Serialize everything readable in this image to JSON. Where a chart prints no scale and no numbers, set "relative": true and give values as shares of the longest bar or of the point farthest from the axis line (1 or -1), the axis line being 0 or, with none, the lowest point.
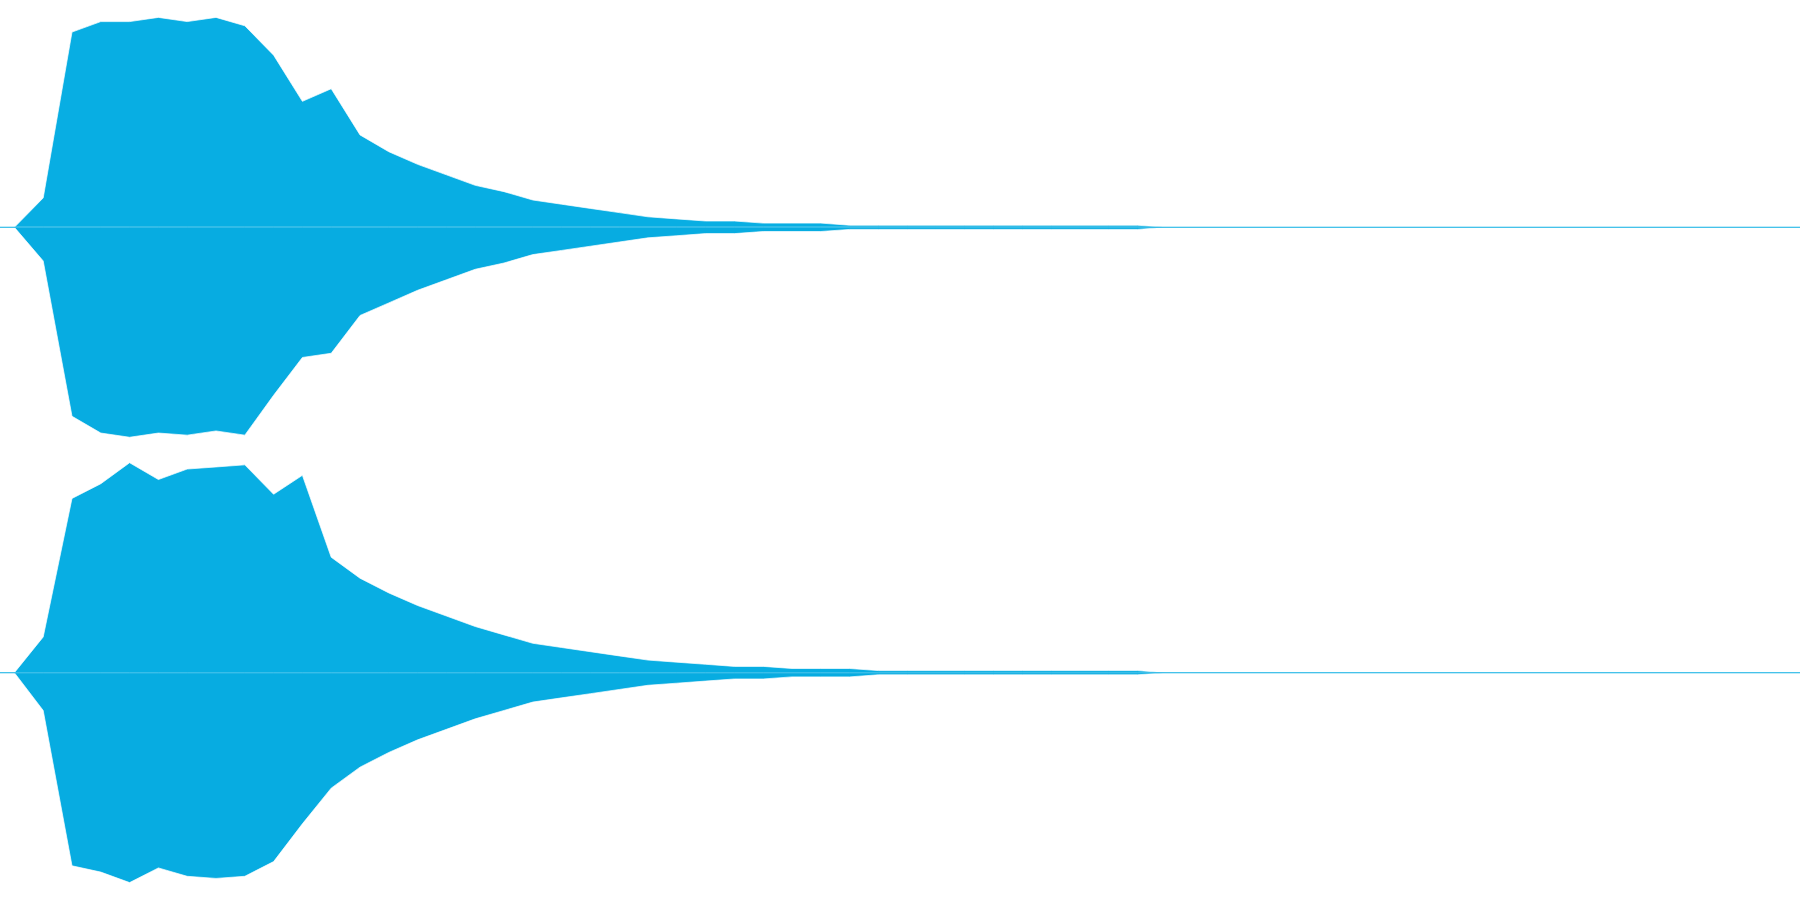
{
  "chart_data": [
    {
      "type": "area",
      "relative": true,
      "categories": [
        null,
        null,
        null,
        null,
        null,
        null,
        null,
        null,
        null,
        null,
        null,
        null,
        null,
        null,
        null,
        null,
        null,
        null,
        null,
        null,
        null,
        null,
        null,
        null,
        null,
        null,
        null,
        null,
        null,
        null,
        null,
        null,
        null,
        null,
        null,
        null,
        null,
        null,
        null,
        null,
        null,
        null,
        null,
        null,
        null,
        null,
        null,
        null,
        null,
        null,
        null,
        null,
        null,
        null,
        null,
        null,
        null,
        null,
        null,
        null,
        null,
        null,
        null
      ],
      "ref_lines": [
        {
          "axis": "y",
          "value": 0,
          "color": "#08aee3"
        }
      ],
      "series": [
        {
          "color": "#08aee3",
          "values": [
            0,
            0.14,
            0.93,
            0.98,
            0.98,
            1.0,
            0.98,
            1.0,
            0.96,
            0.82,
            0.6,
            0.66,
            0.44,
            0.36,
            0.3,
            0.25,
            0.2,
            0.17,
            0.13,
            0.11,
            0.09,
            0.07,
            0.05,
            0.04,
            0.03,
            0.03,
            0.02,
            0.02,
            0.02,
            0.01,
            0.01,
            0.01,
            0.01,
            0.01,
            0.01,
            0.01,
            0.01,
            0.01,
            0.01,
            0.01,
            0,
            0,
            0,
            0,
            0,
            0,
            0,
            0,
            0,
            0,
            0,
            0,
            0,
            0,
            0,
            0,
            0,
            0,
            0,
            0,
            0,
            0,
            0
          ]
        },
        {
          "color": "#07ace1",
          "values": [
            0,
            -0.16,
            -0.9,
            -0.98,
            -1.0,
            -0.98,
            -0.99,
            -0.97,
            -0.99,
            -0.8,
            -0.62,
            -0.6,
            -0.42,
            -0.36,
            -0.3,
            -0.25,
            -0.2,
            -0.17,
            -0.13,
            -0.11,
            -0.09,
            -0.07,
            -0.05,
            -0.04,
            -0.03,
            -0.03,
            -0.02,
            -0.02,
            -0.02,
            -0.01,
            -0.01,
            -0.01,
            -0.01,
            -0.01,
            -0.01,
            -0.01,
            -0.01,
            -0.01,
            -0.01,
            -0.01,
            0,
            0,
            0,
            0,
            0,
            0,
            0,
            0,
            0,
            0,
            0,
            0,
            0,
            0,
            0,
            0,
            0,
            0,
            0,
            0,
            0,
            0,
            0
          ]
        }
      ]
    },
    {
      "type": "area",
      "relative": true,
      "categories": [
        null,
        null,
        null,
        null,
        null,
        null,
        null,
        null,
        null,
        null,
        null,
        null,
        null,
        null,
        null,
        null,
        null,
        null,
        null,
        null,
        null,
        null,
        null,
        null,
        null,
        null,
        null,
        null,
        null,
        null,
        null,
        null,
        null,
        null,
        null,
        null,
        null,
        null,
        null,
        null,
        null,
        null,
        null,
        null,
        null,
        null,
        null,
        null,
        null,
        null,
        null,
        null,
        null,
        null,
        null,
        null,
        null,
        null,
        null,
        null,
        null,
        null,
        null
      ],
      "ref_lines": [
        {
          "axis": "y",
          "value": 0,
          "color": "#08aee3"
        }
      ],
      "series": [
        {
          "color": "#08aee3",
          "values": [
            0,
            0.17,
            0.83,
            0.9,
            1.0,
            0.92,
            0.97,
            0.98,
            0.99,
            0.85,
            0.94,
            0.55,
            0.45,
            0.38,
            0.32,
            0.27,
            0.22,
            0.18,
            0.14,
            0.12,
            0.1,
            0.08,
            0.06,
            0.05,
            0.04,
            0.03,
            0.03,
            0.02,
            0.02,
            0.02,
            0.01,
            0.01,
            0.01,
            0.01,
            0.01,
            0.01,
            0.01,
            0.01,
            0.01,
            0.01,
            0,
            0,
            0,
            0,
            0,
            0,
            0,
            0,
            0,
            0,
            0,
            0,
            0,
            0,
            0,
            0,
            0,
            0,
            0,
            0,
            0,
            0,
            0
          ]
        },
        {
          "color": "#07ace1",
          "values": [
            0,
            -0.18,
            -0.92,
            -0.95,
            -1.0,
            -0.93,
            -0.97,
            -0.98,
            -0.97,
            -0.9,
            -0.72,
            -0.55,
            -0.45,
            -0.38,
            -0.32,
            -0.27,
            -0.22,
            -0.18,
            -0.14,
            -0.12,
            -0.1,
            -0.08,
            -0.06,
            -0.05,
            -0.04,
            -0.03,
            -0.03,
            -0.02,
            -0.02,
            -0.02,
            -0.01,
            -0.01,
            -0.01,
            -0.01,
            -0.01,
            -0.01,
            -0.01,
            -0.01,
            -0.01,
            -0.01,
            0,
            0,
            0,
            0,
            0,
            0,
            0,
            0,
            0,
            0,
            0,
            0,
            0,
            0,
            0,
            0,
            0,
            0,
            0,
            0,
            0,
            0,
            0
          ]
        }
      ]
    }
  ]
}
